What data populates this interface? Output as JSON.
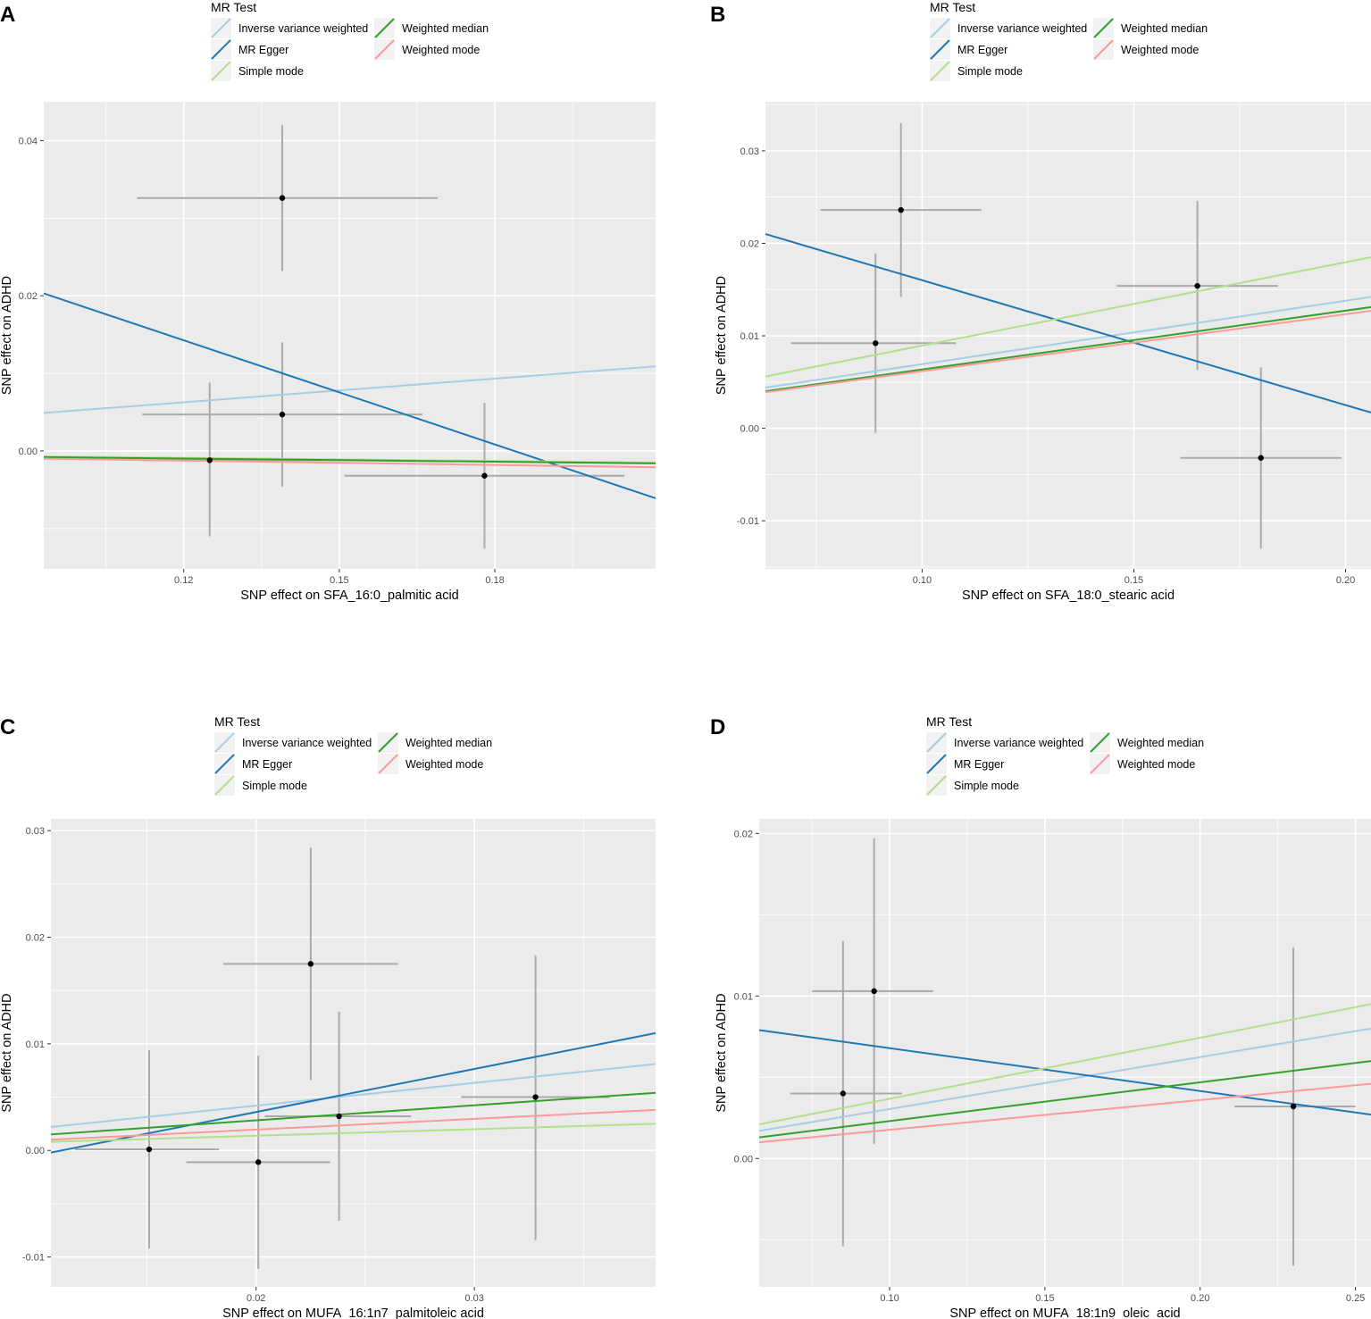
{
  "legend": {
    "title": "MR Test",
    "entries": [
      {
        "name": "Inverse variance weighted",
        "color": "#A6CEE3"
      },
      {
        "name": "MR Egger",
        "color": "#1F78B4"
      },
      {
        "name": "Simple mode",
        "color": "#B2DF8A"
      },
      {
        "name": "Weighted median",
        "color": "#33A02C"
      },
      {
        "name": "Weighted mode",
        "color": "#FB9A99"
      }
    ]
  },
  "colors": {
    "panel_bg": "#EBEBEB",
    "grid": "#FFFFFF",
    "points": "#000000",
    "error_bars": "#AAAAAA",
    "text": "#000000",
    "tick_text": "#4D4D4D"
  },
  "chart_data": [
    {
      "type": "scatter",
      "panel": "A",
      "xlabel": "SNP effect on SFA_16:0_palmitic acid",
      "ylabel": "SNP effect on ADHD",
      "xlim": [
        0.093,
        0.211
      ],
      "ylim": [
        -0.0152,
        0.045
      ],
      "xticks": [
        0.12,
        0.15,
        0.18
      ],
      "xtick_labels": [
        "0.12",
        "0.15",
        "0.18"
      ],
      "yticks": [
        0.0,
        0.02,
        0.04
      ],
      "ytick_labels": [
        "0.00",
        "0.02",
        "0.04"
      ],
      "points": [
        {
          "x": 0.139,
          "y": 0.0326,
          "x_lo": 0.111,
          "x_hi": 0.169,
          "y_lo": 0.0232,
          "y_hi": 0.042
        },
        {
          "x": 0.125,
          "y": -0.0012,
          "x_lo": 0.112,
          "x_hi": 0.153,
          "y_lo": -0.011,
          "y_hi": 0.0088
        },
        {
          "x": 0.139,
          "y": 0.0047,
          "x_lo": 0.112,
          "x_hi": 0.166,
          "y_lo": -0.0046,
          "y_hi": 0.014
        },
        {
          "x": 0.178,
          "y": -0.0032,
          "x_lo": 0.151,
          "x_hi": 0.205,
          "y_lo": -0.0126,
          "y_hi": 0.0062
        }
      ],
      "series": [
        {
          "name": "Inverse variance weighted",
          "x": [
            0.093,
            0.211
          ],
          "y": [
            0.0049,
            0.0109
          ]
        },
        {
          "name": "MR Egger",
          "x": [
            0.093,
            0.211
          ],
          "y": [
            0.0203,
            -0.0061
          ]
        },
        {
          "name": "Simple mode",
          "x": [
            0.093,
            0.211
          ],
          "y": [
            -0.0007,
            -0.0015
          ]
        },
        {
          "name": "Weighted median",
          "x": [
            0.093,
            0.211
          ],
          "y": [
            -0.0008,
            -0.0016
          ]
        },
        {
          "name": "Weighted mode",
          "x": [
            0.093,
            0.211
          ],
          "y": [
            -0.001,
            -0.0021
          ]
        }
      ]
    },
    {
      "type": "scatter",
      "panel": "B",
      "xlabel": "SNP effect on SFA_18:0_stearic acid",
      "ylabel": "SNP effect on ADHD",
      "xlim": [
        0.063,
        0.206
      ],
      "ylim": [
        -0.0152,
        0.0353
      ],
      "xticks": [
        0.1,
        0.15,
        0.2
      ],
      "xtick_labels": [
        "0.10",
        "0.15",
        "0.20"
      ],
      "yticks": [
        -0.01,
        0.0,
        0.01,
        0.02,
        0.03
      ],
      "ytick_labels": [
        "-0.01",
        "0.00",
        "0.01",
        "0.02",
        "0.03"
      ],
      "points": [
        {
          "x": 0.095,
          "y": 0.0236,
          "x_lo": 0.076,
          "x_hi": 0.114,
          "y_lo": 0.0142,
          "y_hi": 0.033
        },
        {
          "x": 0.089,
          "y": 0.0092,
          "x_lo": 0.069,
          "x_hi": 0.108,
          "y_lo": -0.0005,
          "y_hi": 0.0189
        },
        {
          "x": 0.165,
          "y": 0.0154,
          "x_lo": 0.146,
          "x_hi": 0.184,
          "y_lo": 0.0063,
          "y_hi": 0.0246
        },
        {
          "x": 0.18,
          "y": -0.0032,
          "x_lo": 0.161,
          "x_hi": 0.199,
          "y_lo": -0.013,
          "y_hi": 0.0066
        }
      ],
      "series": [
        {
          "name": "Inverse variance weighted",
          "x": [
            0.063,
            0.206
          ],
          "y": [
            0.0044,
            0.0142
          ]
        },
        {
          "name": "MR Egger",
          "x": [
            0.063,
            0.206
          ],
          "y": [
            0.021,
            0.0017
          ]
        },
        {
          "name": "Simple mode",
          "x": [
            0.063,
            0.206
          ],
          "y": [
            0.0056,
            0.0185
          ]
        },
        {
          "name": "Weighted median",
          "x": [
            0.063,
            0.206
          ],
          "y": [
            0.004,
            0.0131
          ]
        },
        {
          "name": "Weighted mode",
          "x": [
            0.063,
            0.206
          ],
          "y": [
            0.0039,
            0.0127
          ]
        }
      ]
    },
    {
      "type": "scatter",
      "panel": "C",
      "xlabel": "SNP effect on MUFA_16:1n7_palmitoleic acid",
      "ylabel": "SNP effect on ADHD",
      "xlim": [
        0.0106,
        0.0383
      ],
      "ylim": [
        -0.0128,
        0.0311
      ],
      "xticks": [
        0.02,
        0.03
      ],
      "xtick_labels": [
        "0.02",
        "0.03"
      ],
      "yticks": [
        -0.01,
        0.0,
        0.01,
        0.02,
        0.03
      ],
      "ytick_labels": [
        "-0.01",
        "0.00",
        "0.01",
        "0.02",
        "0.03"
      ],
      "points": [
        {
          "x": 0.0151,
          "y": 0.0001,
          "x_lo": 0.0117,
          "x_hi": 0.0183,
          "y_lo": -0.0092,
          "y_hi": 0.0094
        },
        {
          "x": 0.0201,
          "y": -0.0011,
          "x_lo": 0.0168,
          "x_hi": 0.0234,
          "y_lo": -0.0111,
          "y_hi": 0.0089
        },
        {
          "x": 0.0225,
          "y": 0.0175,
          "x_lo": 0.0185,
          "x_hi": 0.0265,
          "y_lo": 0.0066,
          "y_hi": 0.0284
        },
        {
          "x": 0.0238,
          "y": 0.0032,
          "x_lo": 0.0204,
          "x_hi": 0.0271,
          "y_lo": -0.0066,
          "y_hi": 0.013
        },
        {
          "x": 0.0328,
          "y": 0.005,
          "x_lo": 0.0294,
          "x_hi": 0.0362,
          "y_lo": -0.0084,
          "y_hi": 0.0183
        }
      ],
      "series": [
        {
          "name": "Inverse variance weighted",
          "x": [
            0.0106,
            0.0383
          ],
          "y": [
            0.0022,
            0.0081
          ]
        },
        {
          "name": "MR Egger",
          "x": [
            0.0106,
            0.0383
          ],
          "y": [
            -0.0002,
            0.011
          ]
        },
        {
          "name": "Simple mode",
          "x": [
            0.0106,
            0.0383
          ],
          "y": [
            0.0008,
            0.0025
          ]
        },
        {
          "name": "Weighted median",
          "x": [
            0.0106,
            0.0383
          ],
          "y": [
            0.0015,
            0.0054
          ]
        },
        {
          "name": "Weighted mode",
          "x": [
            0.0106,
            0.0383
          ],
          "y": [
            0.001,
            0.0038
          ]
        }
      ]
    },
    {
      "type": "scatter",
      "panel": "D",
      "xlabel": "SNP effect on MUFA_18:1n9_oleic_acid",
      "ylabel": "SNP effect on ADHD",
      "xlim": [
        0.058,
        0.255
      ],
      "ylim": [
        -0.0079,
        0.0209
      ],
      "xticks": [
        0.1,
        0.15,
        0.2,
        0.25
      ],
      "xtick_labels": [
        "0.10",
        "0.15",
        "0.20",
        "0.25"
      ],
      "yticks": [
        0.0,
        0.01,
        0.02
      ],
      "ytick_labels": [
        "0.00",
        "0.01",
        "0.02"
      ],
      "points": [
        {
          "x": 0.085,
          "y": 0.004,
          "x_lo": 0.068,
          "x_hi": 0.104,
          "y_lo": -0.0054,
          "y_hi": 0.0134
        },
        {
          "x": 0.095,
          "y": 0.0103,
          "x_lo": 0.075,
          "x_hi": 0.114,
          "y_lo": 0.0009,
          "y_hi": 0.0197
        },
        {
          "x": 0.23,
          "y": 0.0032,
          "x_lo": 0.211,
          "x_hi": 0.25,
          "y_lo": -0.0066,
          "y_hi": 0.013
        }
      ],
      "series": [
        {
          "name": "Inverse variance weighted",
          "x": [
            0.058,
            0.255
          ],
          "y": [
            0.0017,
            0.008
          ]
        },
        {
          "name": "MR Egger",
          "x": [
            0.058,
            0.255
          ],
          "y": [
            0.0079,
            0.0027
          ]
        },
        {
          "name": "Simple mode",
          "x": [
            0.058,
            0.255
          ],
          "y": [
            0.0021,
            0.0095
          ]
        },
        {
          "name": "Weighted median",
          "x": [
            0.058,
            0.255
          ],
          "y": [
            0.0013,
            0.006
          ]
        },
        {
          "name": "Weighted mode",
          "x": [
            0.058,
            0.255
          ],
          "y": [
            0.001,
            0.0046
          ]
        }
      ]
    }
  ]
}
